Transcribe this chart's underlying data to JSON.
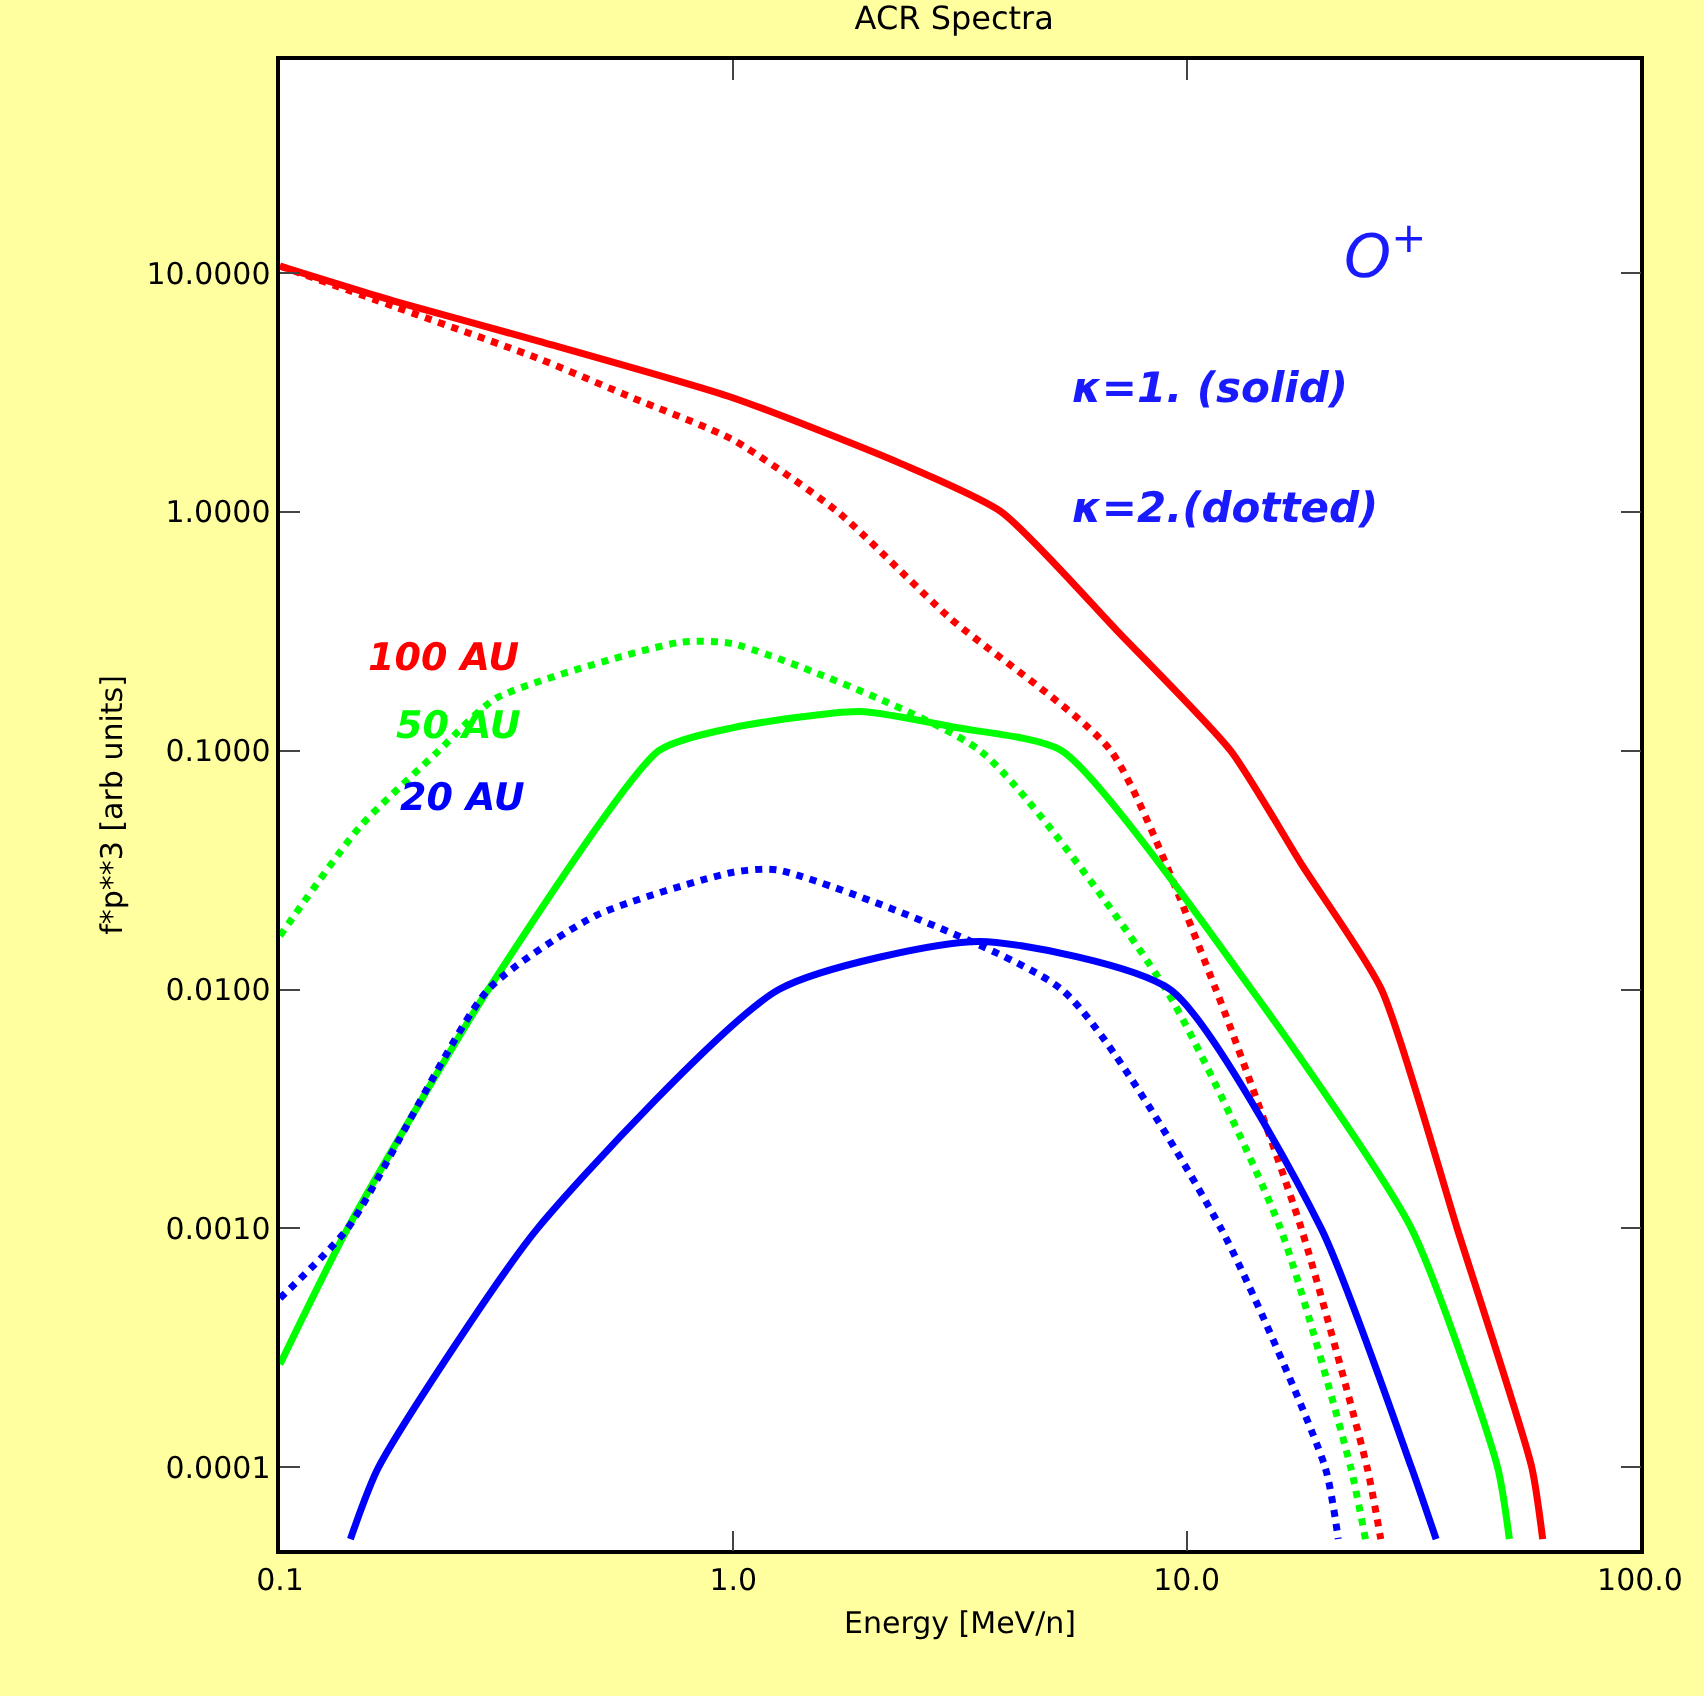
{
  "chart_data": {
    "type": "line",
    "title": "ACR Spectra",
    "xlabel": "Energy [MeV/n]",
    "ylabel": "f*p**3 [arb units]",
    "annotations": [
      "O$^{+}$",
      "κ=1. (solid)",
      "κ=2.(dotted)"
    ],
    "log": "xy",
    "grid": false,
    "legend": false,
    "marker": "none",
    "xlim": [
      0.1,
      100
    ],
    "xticks": [
      {
        "value": 0.1,
        "label": "0.1"
      },
      {
        "value": 1,
        "label": "1.0"
      },
      {
        "value": 10,
        "label": "10.0"
      },
      {
        "value": 100,
        "label": "100.0"
      }
    ],
    "ylim": [
      4.5e-05,
      78
    ],
    "yticks": [
      {
        "value": 0.0001,
        "label": "0.0001"
      },
      {
        "value": 0.001,
        "label": "0.0010"
      },
      {
        "value": 0.01,
        "label": "0.0100"
      },
      {
        "value": 0.1,
        "label": "0.1000"
      },
      {
        "value": 1,
        "label": "1.0000"
      },
      {
        "value": 10,
        "label": "10.0000"
      }
    ],
    "series": [
      {
        "name": "100 AU",
        "color": "#ff0000",
        "line_style": "solid",
        "x": [
          0.1,
          0.18,
          0.37,
          1.0,
          2.33,
          3.9,
          7,
          12.5,
          18,
          26.9,
          39.5,
          57.7,
          61
        ],
        "values": [
          10.7,
          7.6,
          5.2,
          3.0,
          1.6,
          1.0,
          0.32,
          0.1,
          0.033,
          0.01,
          0.001,
          0.0001,
          5e-05
        ]
      },
      {
        "color": "#ff0000",
        "line_style": "dotted",
        "x": [
          0.1,
          0.18,
          0.37,
          0.6,
          1.0,
          1.7,
          3,
          6.8,
          11.6,
          17.9,
          25,
          26.8
        ],
        "values": [
          10.7,
          7.2,
          4.4,
          3.0,
          2.0,
          1.0,
          0.36,
          0.1,
          0.01,
          0.001,
          0.0001,
          5e-05
        ]
      },
      {
        "name": "50 AU",
        "color": "#00ff00",
        "line_style": "solid",
        "x": [
          0.1,
          0.141,
          0.288,
          0.685,
          1.0,
          1.9,
          3.1,
          5.3,
          13.9,
          31.3,
          48.5,
          51.5
        ],
        "values": [
          0.00027,
          0.001,
          0.01,
          0.1,
          0.125,
          0.146,
          0.125,
          0.1,
          0.01,
          0.001,
          0.0001,
          5e-05
        ]
      },
      {
        "color": "#00ff00",
        "line_style": "dotted",
        "x": [
          0.1,
          0.15,
          0.224,
          0.3,
          0.76,
          1.0,
          3.5,
          9.0,
          16.1,
          23,
          24.8
        ],
        "values": [
          0.0168,
          0.048,
          0.1,
          0.166,
          0.284,
          0.28,
          0.1,
          0.01,
          0.001,
          0.0001,
          5e-05
        ]
      },
      {
        "name": "20 AU",
        "color": "#0000ff",
        "line_style": "solid",
        "x": [
          0.143,
          0.165,
          0.37,
          1.26,
          3.5,
          9.2,
          19.8,
          31.3,
          35.5
        ],
        "values": [
          5e-05,
          0.0001,
          0.001,
          0.01,
          0.0159,
          0.01,
          0.001,
          0.0001,
          5e-05
        ]
      },
      {
        "color": "#0000ff",
        "line_style": "dotted",
        "x": [
          0.1,
          0.141,
          0.288,
          0.5,
          1.0,
          1.26,
          5.3,
          11.9,
          20.2,
          21.6
        ],
        "values": [
          0.00051,
          0.001,
          0.01,
          0.0205,
          0.031,
          0.0316,
          0.01,
          0.001,
          0.0001,
          5e-05
        ]
      }
    ]
  }
}
